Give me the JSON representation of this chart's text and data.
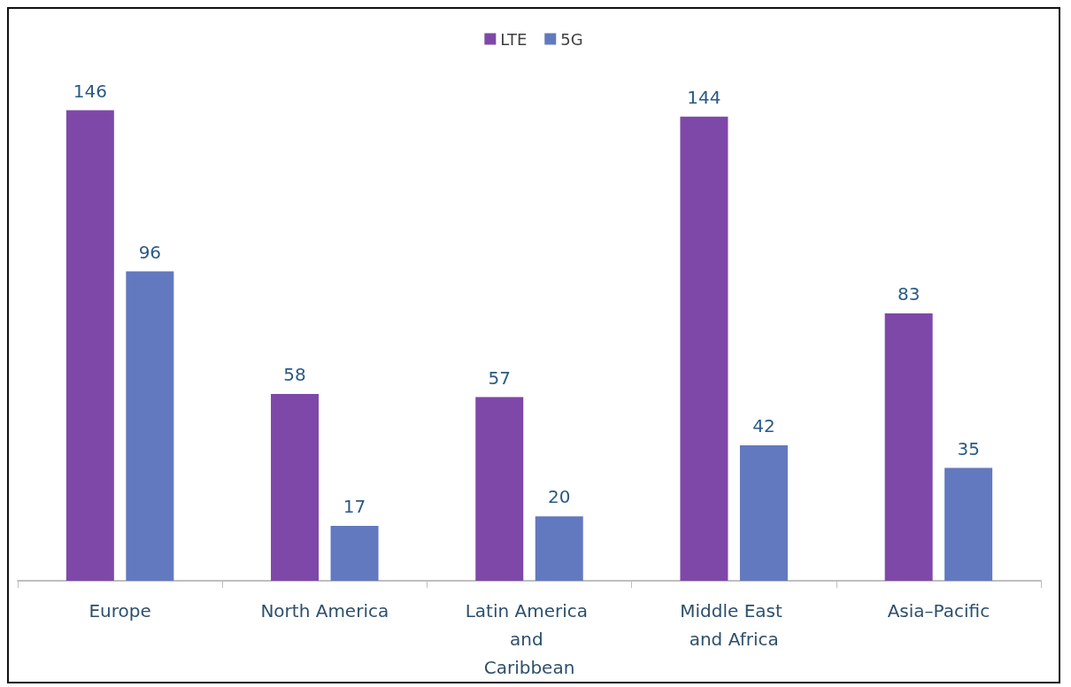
{
  "chart_data": {
    "type": "bar",
    "categories": [
      "Europe",
      "North America",
      "Latin America and Caribbean",
      "Middle East and Africa",
      "Asia–Pacific"
    ],
    "series": [
      {
        "name": "LTE",
        "color": "#7e48a8",
        "values": [
          146,
          58,
          57,
          144,
          83
        ]
      },
      {
        "name": "5G",
        "color": "#6279bf",
        "values": [
          96,
          17,
          20,
          42,
          35
        ]
      }
    ],
    "data_labels": true,
    "legend": "top",
    "grid": false
  }
}
